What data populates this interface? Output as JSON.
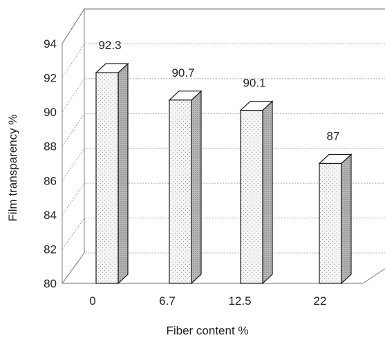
{
  "chart_data": {
    "type": "bar",
    "title": "",
    "xlabel": "Fiber content %",
    "ylabel": "Film transparency %",
    "categories": [
      "0",
      "6.7",
      "12.5",
      "22"
    ],
    "values": [
      92.3,
      90.7,
      90.1,
      87
    ],
    "data_labels": [
      "92.3",
      "90.7",
      "90.1",
      "87"
    ],
    "ylim": [
      80,
      94
    ],
    "yticks": [
      "80",
      "82",
      "84",
      "86",
      "88",
      "90",
      "92",
      "94"
    ],
    "grid": true,
    "style": "3d-dotted-bars",
    "colors": {
      "bar_front": "#f2f2f2",
      "bar_side": "#a8a8a8",
      "bar_top": "#ffffff",
      "edge": "#1a1a1a"
    }
  }
}
